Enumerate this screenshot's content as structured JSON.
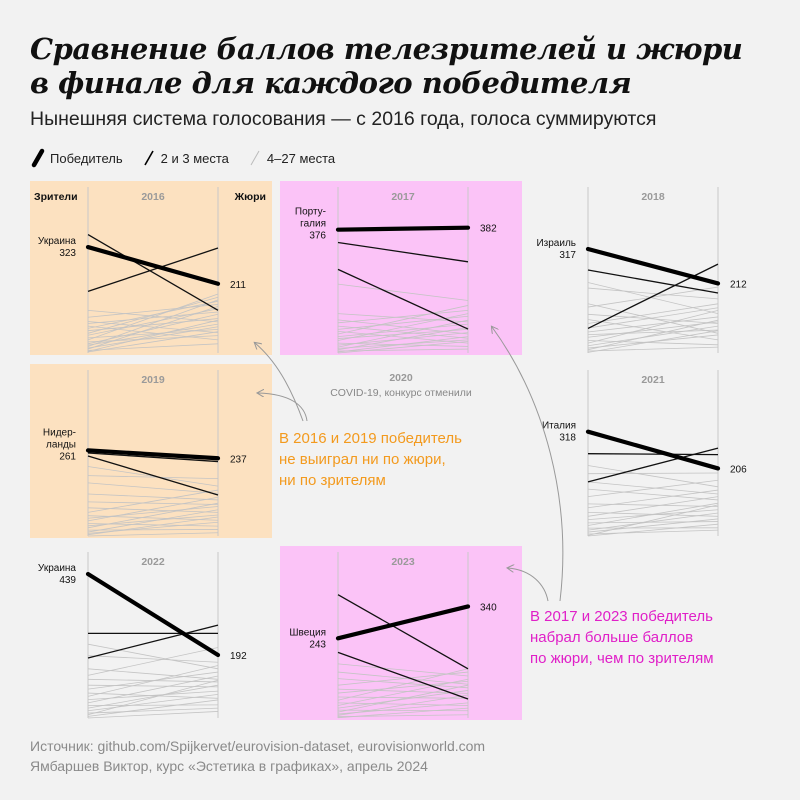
{
  "title": "Сравнение баллов телезрителей и жюри в финале для каждого победителя",
  "subtitle": "Нынешняя система голосования — с 2016 года, голоса суммируются",
  "legend": {
    "winner": "Победитель",
    "second_third": "2 и 3 места",
    "others": "4–27 места"
  },
  "axis_labels": {
    "left": "Зрители",
    "right": "Жюри"
  },
  "covid": {
    "year": "2020",
    "text": "COVID-19, конкурс отменили"
  },
  "notes": {
    "orange": [
      "В 2016 и 2019 победитель",
      "не выиграл ни по жюри,",
      "ни по зрителям"
    ],
    "magenta": [
      "В 2017 и 2023 победитель",
      "набрал больше баллов",
      "по жюри, чем по зрителям"
    ]
  },
  "footer": {
    "source": "Источник: github.com/Spijkervet/eurovision-dataset, eurovisionworld.com",
    "author": "Ямбаршев Виктор, курс «Эстетика в графиках», апрель 2024"
  },
  "colors": {
    "orange_bg": "#fce1c0",
    "magenta_bg": "#fbc3f7",
    "orange_note": "#f39a1e",
    "magenta_note": "#e020c8"
  },
  "chart_data": {
    "type": "line",
    "description_axes": [
      "Зрители",
      "Жюри"
    ],
    "ylim": [
      0,
      439
    ],
    "panels": [
      {
        "year": "2016",
        "bg": "orange",
        "show_axis_labels": true,
        "winner": {
          "label": "Украина",
          "tele": 323,
          "jury": 211
        },
        "top3": [
          {
            "tele": 361,
            "jury": 130
          },
          {
            "tele": 188,
            "jury": 320
          }
        ],
        "others": [
          [
            130,
            95
          ],
          [
            109,
            148
          ],
          [
            96,
            62
          ],
          [
            90,
            125
          ],
          [
            82,
            40
          ],
          [
            75,
            158
          ],
          [
            68,
            105
          ],
          [
            60,
            170
          ],
          [
            54,
            135
          ],
          [
            46,
            72
          ],
          [
            40,
            180
          ],
          [
            34,
            53
          ],
          [
            28,
            118
          ],
          [
            24,
            88
          ],
          [
            20,
            162
          ],
          [
            15,
            80
          ],
          [
            12,
            142
          ],
          [
            8,
            28
          ],
          [
            5,
            100
          ],
          [
            3,
            65
          ]
        ]
      },
      {
        "year": "2017",
        "bg": "magenta",
        "winner": {
          "label": "Порту-\nгалия",
          "tele": 376,
          "jury": 382
        },
        "top3": [
          {
            "tele": 337,
            "jury": 278
          },
          {
            "tele": 255,
            "jury": 73
          }
        ],
        "others": [
          [
            210,
            160
          ],
          [
            120,
            95
          ],
          [
            101,
            58
          ],
          [
            92,
            130
          ],
          [
            82,
            45
          ],
          [
            72,
            112
          ],
          [
            66,
            30
          ],
          [
            58,
            145
          ],
          [
            50,
            88
          ],
          [
            44,
            72
          ],
          [
            38,
            120
          ],
          [
            30,
            20
          ],
          [
            24,
            62
          ],
          [
            18,
            100
          ],
          [
            14,
            40
          ],
          [
            10,
            78
          ],
          [
            6,
            12
          ],
          [
            3,
            50
          ],
          [
            0,
            35
          ]
        ]
      },
      {
        "year": "2018",
        "winner": {
          "label": "Израиль",
          "tele": 317,
          "jury": 212
        },
        "top3": [
          {
            "tele": 253,
            "jury": 183
          },
          {
            "tele": 75,
            "jury": 271
          }
        ],
        "others": [
          [
            215,
            120
          ],
          [
            198,
            165
          ],
          [
            150,
            60
          ],
          [
            140,
            201
          ],
          [
            118,
            90
          ],
          [
            102,
            40
          ],
          [
            90,
            150
          ],
          [
            76,
            138
          ],
          [
            64,
            110
          ],
          [
            56,
            70
          ],
          [
            48,
            95
          ],
          [
            38,
            25
          ],
          [
            30,
            130
          ],
          [
            22,
            82
          ],
          [
            15,
            55
          ],
          [
            10,
            100
          ],
          [
            6,
            18
          ],
          [
            2,
            68
          ]
        ]
      },
      {
        "year": "2019",
        "bg": "orange",
        "winner": {
          "label": "Нидер-\nланды",
          "tele": 261,
          "jury": 237
        },
        "top3": [
          {
            "tele": 244,
            "jury": 125
          },
          {
            "tele": 253,
            "jury": 227
          }
        ],
        "others": [
          [
            212,
            152
          ],
          [
            184,
            175
          ],
          [
            162,
            130
          ],
          [
            128,
            110
          ],
          [
            104,
            96
          ],
          [
            86,
            72
          ],
          [
            72,
            140
          ],
          [
            62,
            48
          ],
          [
            54,
            90
          ],
          [
            46,
            118
          ],
          [
            38,
            30
          ],
          [
            31,
            64
          ],
          [
            25,
            100
          ],
          [
            18,
            20
          ],
          [
            12,
            80
          ],
          [
            8,
            42
          ],
          [
            4,
            58
          ],
          [
            0,
            10
          ]
        ]
      },
      {
        "year": "2021",
        "winner": {
          "label": "Италия",
          "tele": 318,
          "jury": 206
        },
        "top3": [
          {
            "tele": 251,
            "jury": 248
          },
          {
            "tele": 165,
            "jury": 268
          }
        ],
        "others": [
          [
            215,
            150
          ],
          [
            190,
            192
          ],
          [
            165,
            128
          ],
          [
            143,
            110
          ],
          [
            120,
            170
          ],
          [
            98,
            90
          ],
          [
            86,
            140
          ],
          [
            72,
            60
          ],
          [
            60,
            120
          ],
          [
            50,
            80
          ],
          [
            40,
            44
          ],
          [
            32,
            100
          ],
          [
            24,
            25
          ],
          [
            18,
            70
          ],
          [
            12,
            52
          ],
          [
            6,
            18
          ],
          [
            2,
            95
          ],
          [
            0,
            36
          ]
        ]
      },
      {
        "year": "2022",
        "winner": {
          "label": "Украина",
          "tele": 439,
          "jury": 192
        },
        "top3": [
          {
            "tele": 183,
            "jury": 283
          },
          {
            "tele": 258,
            "jury": 258
          }
        ],
        "others": [
          [
            225,
            150
          ],
          [
            190,
            170
          ],
          [
            150,
            118
          ],
          [
            130,
            215
          ],
          [
            118,
            110
          ],
          [
            100,
            95
          ],
          [
            88,
            140
          ],
          [
            76,
            60
          ],
          [
            66,
            160
          ],
          [
            56,
            82
          ],
          [
            46,
            128
          ],
          [
            38,
            40
          ],
          [
            30,
            100
          ],
          [
            22,
            72
          ],
          [
            15,
            30
          ],
          [
            10,
            115
          ],
          [
            5,
            55
          ],
          [
            0,
            20
          ]
        ]
      },
      {
        "year": "2023",
        "bg": "magenta",
        "winner": {
          "label": "Швеция",
          "tele": 243,
          "jury": 340
        },
        "top3": [
          {
            "tele": 376,
            "jury": 150
          },
          {
            "tele": 200,
            "jury": 58
          }
        ],
        "others": [
          [
            165,
            128
          ],
          [
            140,
            103
          ],
          [
            120,
            92
          ],
          [
            100,
            140
          ],
          [
            88,
            75
          ],
          [
            76,
            112
          ],
          [
            64,
            60
          ],
          [
            54,
            150
          ],
          [
            46,
            38
          ],
          [
            38,
            118
          ],
          [
            30,
            84
          ],
          [
            24,
            22
          ],
          [
            18,
            100
          ],
          [
            12,
            46
          ],
          [
            8,
            70
          ],
          [
            4,
            10
          ],
          [
            1,
            30
          ]
        ]
      }
    ]
  }
}
